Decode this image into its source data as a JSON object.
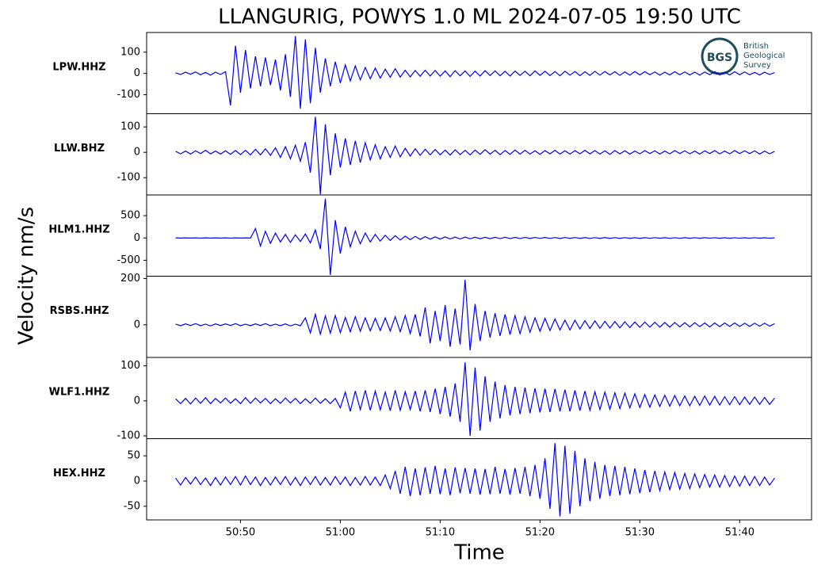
{
  "logo": {
    "abbr": "BGS",
    "lines": [
      "British",
      "Geological",
      "Survey"
    ]
  },
  "chart_data": {
    "type": "line",
    "title": "LLANGURIG, POWYS 1.0 ML   2024-07-05 19:50 UTC",
    "x_label": "Time",
    "y_label": "Velocity nm/s",
    "xlim": [
      40.6,
      107.2
    ],
    "xticks": [
      {
        "value": 50,
        "label": "50:50"
      },
      {
        "value": 60,
        "label": "51:00"
      },
      {
        "value": 70,
        "label": "51:10"
      },
      {
        "value": 80,
        "label": "51:20"
      },
      {
        "value": 90,
        "label": "51:30"
      },
      {
        "value": 100,
        "label": "51:40"
      }
    ],
    "x": [
      43.5,
      44,
      44.5,
      45,
      45.5,
      46,
      46.5,
      47,
      47.5,
      48,
      48.5,
      49,
      49.5,
      50,
      50.5,
      51,
      51.5,
      52,
      52.5,
      53,
      53.5,
      54,
      54.5,
      55,
      55.5,
      56,
      56.5,
      57,
      57.5,
      58,
      58.5,
      59,
      59.5,
      60,
      60.5,
      61,
      61.5,
      62,
      62.5,
      63,
      63.5,
      64,
      64.5,
      65,
      65.5,
      66,
      66.5,
      67,
      67.5,
      68,
      68.5,
      69,
      69.5,
      70,
      70.5,
      71,
      71.5,
      72,
      72.5,
      73,
      73.5,
      74,
      74.5,
      75,
      75.5,
      76,
      76.5,
      77,
      77.5,
      78,
      78.5,
      79,
      79.5,
      80,
      80.5,
      81,
      81.5,
      82,
      82.5,
      83,
      83.5,
      84,
      84.5,
      85,
      85.5,
      86,
      86.5,
      87,
      87.5,
      88,
      88.5,
      89,
      89.5,
      90,
      90.5,
      91,
      91.5,
      92,
      92.5,
      93,
      93.5,
      94,
      94.5,
      95,
      95.5,
      96,
      96.5,
      97,
      97.5,
      98,
      98.5,
      99,
      99.5,
      100,
      100.5,
      101,
      101.5,
      102,
      102.5,
      103,
      103.5
    ],
    "series": [
      {
        "name": "LPW.HHZ",
        "color": "#0000ff",
        "ylim": [
          -189,
          192
        ],
        "yticks": [
          -100,
          0,
          100
        ],
        "values": [
          3,
          -5,
          6,
          -4,
          7,
          -6,
          5,
          -8,
          6,
          -5,
          8,
          -150,
          130,
          -90,
          110,
          -70,
          80,
          -60,
          75,
          -55,
          65,
          -80,
          90,
          -110,
          175,
          -165,
          160,
          -140,
          120,
          -90,
          70,
          -60,
          55,
          -45,
          40,
          -35,
          35,
          -30,
          28,
          -25,
          25,
          -22,
          20,
          -18,
          22,
          -17,
          15,
          -16,
          14,
          -13,
          15,
          -12,
          14,
          -13,
          12,
          -15,
          13,
          -11,
          12,
          -14,
          11,
          -12,
          13,
          -10,
          12,
          -11,
          10,
          -12,
          11,
          -9,
          10,
          -11,
          12,
          -9,
          10,
          -10,
          9,
          -11,
          10,
          -8,
          9,
          -10,
          8,
          -9,
          10,
          -8,
          9,
          -7,
          8,
          -9,
          7,
          -8,
          9,
          -7,
          8,
          -6,
          7,
          -8,
          6,
          -7,
          8,
          -6,
          7,
          -7,
          6,
          -8,
          7,
          -6,
          8,
          -7,
          6,
          -7,
          8,
          -6,
          7,
          -6,
          5,
          -7,
          6,
          -5,
          4
        ]
      },
      {
        "name": "LLW.BHZ",
        "color": "#0000ff",
        "ylim": [
          -168,
          152
        ],
        "yticks": [
          -100,
          0,
          100
        ],
        "values": [
          4,
          -6,
          5,
          -7,
          6,
          -5,
          8,
          -6,
          5,
          -7,
          6,
          -8,
          7,
          -9,
          8,
          -10,
          12,
          -10,
          14,
          -12,
          18,
          -20,
          22,
          -25,
          28,
          -35,
          40,
          -80,
          140,
          -165,
          110,
          -90,
          75,
          -60,
          55,
          -50,
          45,
          -40,
          38,
          -30,
          30,
          -26,
          22,
          -20,
          25,
          -18,
          16,
          -15,
          14,
          -12,
          12,
          -10,
          11,
          -10,
          9,
          -11,
          10,
          -9,
          8,
          -10,
          9,
          -8,
          10,
          -7,
          8,
          -9,
          7,
          -8,
          9,
          -7,
          8,
          -7,
          6,
          -8,
          7,
          -6,
          8,
          -7,
          6,
          -7,
          7,
          -6,
          8,
          -6,
          7,
          -7,
          6,
          -8,
          7,
          -6,
          6,
          -7,
          5,
          -6,
          7,
          -5,
          6,
          -7,
          5,
          -6,
          7,
          -5,
          6,
          -6,
          5,
          -7,
          6,
          -5,
          7,
          -6,
          5,
          -6,
          7,
          -5,
          6,
          -5,
          6,
          -7,
          5,
          -6,
          4
        ]
      },
      {
        "name": "HLM1.HHZ",
        "color": "#0000ff",
        "ylim": [
          -857,
          964
        ],
        "yticks": [
          -500,
          0,
          500
        ],
        "values": [
          2,
          -2,
          3,
          -2,
          2,
          -3,
          2,
          -2,
          3,
          -2,
          2,
          -3,
          2,
          -2,
          3,
          -2,
          210,
          -180,
          150,
          -120,
          110,
          -90,
          80,
          -100,
          70,
          -80,
          90,
          -110,
          180,
          -250,
          880,
          -830,
          400,
          -350,
          250,
          -200,
          150,
          -130,
          110,
          -90,
          80,
          -70,
          60,
          -55,
          50,
          -45,
          40,
          -38,
          35,
          -32,
          30,
          -28,
          26,
          -25,
          24,
          -22,
          20,
          -22,
          20,
          -18,
          18,
          -17,
          16,
          -15,
          16,
          -14,
          15,
          -14,
          13,
          -12,
          12,
          -11,
          12,
          -10,
          11,
          -10,
          10,
          -11,
          10,
          -9,
          10,
          -9,
          9,
          -10,
          8,
          -9,
          9,
          -8,
          8,
          -9,
          8,
          -8,
          7,
          -8,
          7,
          -7,
          8,
          -6,
          7,
          -7,
          6,
          -7,
          7,
          -6,
          6,
          -6,
          7,
          -5,
          6,
          -6,
          5,
          -6,
          6,
          -5,
          5,
          -5,
          6,
          -4,
          5,
          -5,
          3
        ]
      },
      {
        "name": "RSBS.HHZ",
        "color": "#0000ff",
        "ylim": [
          -141,
          210
        ],
        "yticks": [
          0,
          200
        ],
        "values": [
          3,
          -4,
          4,
          -3,
          5,
          -4,
          3,
          -5,
          4,
          -3,
          4,
          -3,
          5,
          -4,
          3,
          -4,
          4,
          -3,
          5,
          -4,
          3,
          -4,
          4,
          -5,
          3,
          -4,
          30,
          -35,
          45,
          -40,
          38,
          -36,
          40,
          -34,
          32,
          -30,
          35,
          -28,
          30,
          -26,
          28,
          -25,
          30,
          -27,
          35,
          -30,
          40,
          -38,
          45,
          -50,
          75,
          -80,
          60,
          -70,
          85,
          -95,
          70,
          -85,
          195,
          -110,
          90,
          -70,
          60,
          -55,
          50,
          -48,
          45,
          -42,
          40,
          -38,
          35,
          -32,
          30,
          -28,
          28,
          -25,
          25,
          -22,
          20,
          -22,
          20,
          -18,
          18,
          -16,
          17,
          -15,
          15,
          -14,
          14,
          -13,
          13,
          -12,
          12,
          -11,
          12,
          -10,
          11,
          -10,
          10,
          -10,
          10,
          -9,
          9,
          -9,
          9,
          -8,
          8,
          -9,
          8,
          -8,
          8,
          -7,
          8,
          -7,
          7,
          -7,
          7,
          -6,
          7,
          -6,
          5
        ]
      },
      {
        "name": "WLF1.HHZ",
        "color": "#0000ff",
        "ylim": [
          -108,
          124
        ],
        "yticks": [
          -100,
          0,
          100
        ],
        "values": [
          6,
          -8,
          7,
          -9,
          8,
          -7,
          9,
          -8,
          7,
          -6,
          8,
          -7,
          6,
          -8,
          9,
          -7,
          8,
          -6,
          7,
          -8,
          6,
          -7,
          8,
          -6,
          7,
          -8,
          6,
          -7,
          8,
          -7,
          6,
          -8,
          7,
          -20,
          25,
          -30,
          28,
          -25,
          30,
          -27,
          28,
          -26,
          25,
          -28,
          30,
          -27,
          26,
          -25,
          28,
          -30,
          30,
          -32,
          35,
          -38,
          40,
          -45,
          50,
          -60,
          110,
          -100,
          95,
          -85,
          70,
          -60,
          55,
          -50,
          45,
          -42,
          40,
          -38,
          38,
          -35,
          36,
          -33,
          35,
          -32,
          34,
          -30,
          32,
          -30,
          30,
          -28,
          28,
          -27,
          26,
          -25,
          25,
          -24,
          23,
          -22,
          22,
          -20,
          20,
          -19,
          18,
          -18,
          17,
          -16,
          16,
          -15,
          15,
          -14,
          14,
          -14,
          13,
          -13,
          14,
          -12,
          13,
          -12,
          12,
          -11,
          12,
          -11,
          11,
          -10,
          11,
          -10,
          10,
          -10,
          8
        ]
      },
      {
        "name": "HEX.HHZ",
        "color": "#0000ff",
        "ylim": [
          -77,
          84
        ],
        "yticks": [
          -50,
          0,
          50
        ],
        "values": [
          6,
          -8,
          7,
          -6,
          8,
          -7,
          6,
          -9,
          7,
          -8,
          8,
          -7,
          9,
          -8,
          10,
          -7,
          8,
          -9,
          7,
          -8,
          8,
          -7,
          9,
          -8,
          7,
          -9,
          8,
          -7,
          9,
          -8,
          7,
          -8,
          9,
          -7,
          8,
          -9,
          7,
          -8,
          9,
          -8,
          8,
          -9,
          12,
          -15,
          20,
          -25,
          28,
          -30,
          25,
          -28,
          27,
          -25,
          30,
          -26,
          25,
          -28,
          27,
          -24,
          26,
          -25,
          25,
          -27,
          24,
          -26,
          28,
          -25,
          24,
          -27,
          26,
          -25,
          28,
          -30,
          32,
          -35,
          45,
          -55,
          75,
          -70,
          70,
          -65,
          60,
          -50,
          45,
          -40,
          38,
          -35,
          32,
          -30,
          30,
          -28,
          28,
          -26,
          25,
          -24,
          22,
          -22,
          20,
          -19,
          18,
          -17,
          17,
          -16,
          15,
          -15,
          14,
          -13,
          13,
          -12,
          12,
          -12,
          11,
          -11,
          10,
          -10,
          10,
          -9,
          9,
          -9,
          8,
          -8,
          6
        ]
      }
    ]
  }
}
